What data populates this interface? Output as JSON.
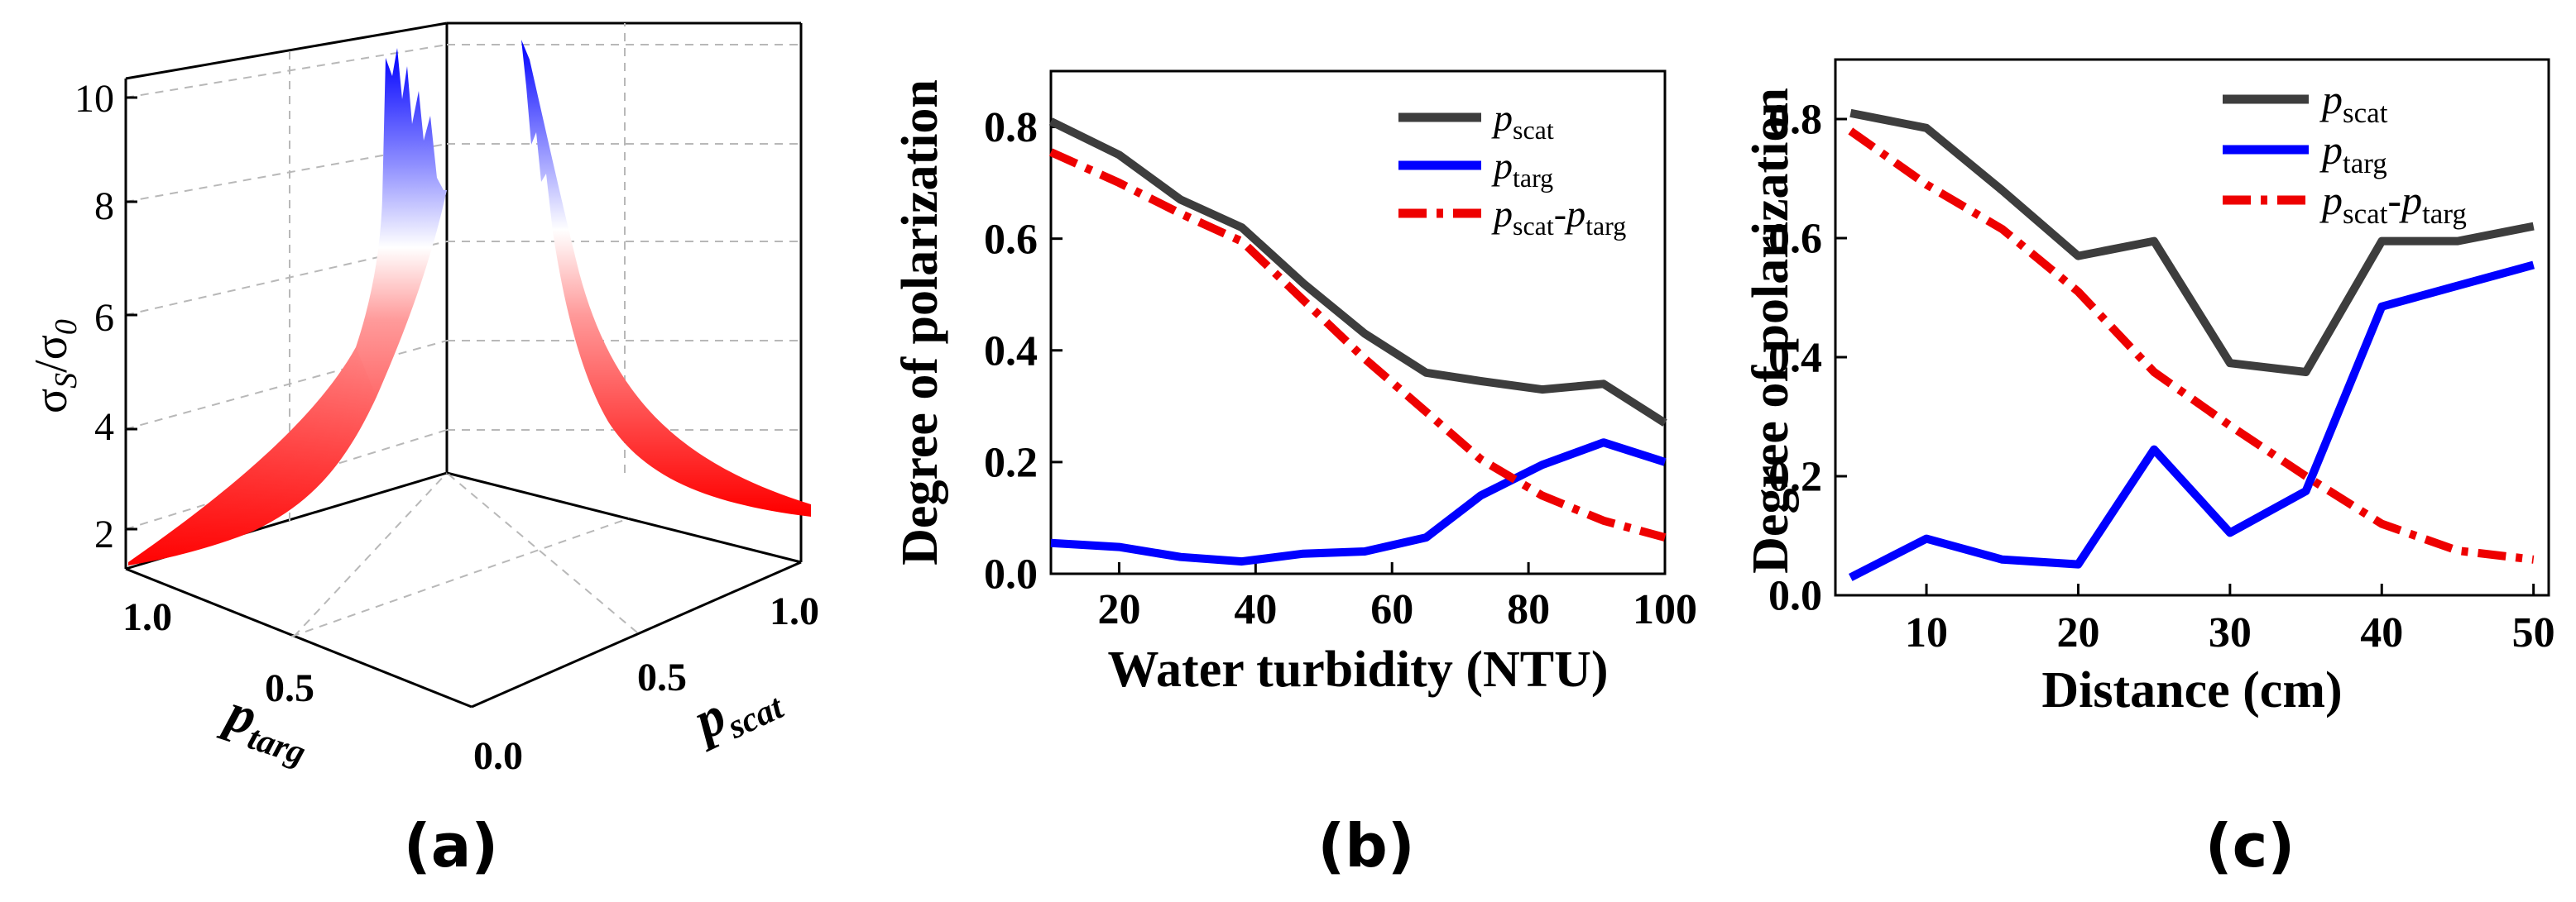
{
  "panel_labels": [
    "(a)",
    "(b)",
    "(c)"
  ],
  "chart_data": [
    {
      "type": "surface",
      "panel": "(a)",
      "zlabel_main": "σ",
      "zlabel_sub_s": "S",
      "zlabel_slash": "/σ",
      "zlabel_sub_0": "0",
      "ztick_labels": [
        "2",
        "4",
        "6",
        "8",
        "10"
      ],
      "zlim": [
        1.4,
        10.7
      ],
      "x_axis": {
        "label": "p",
        "sub": "targ",
        "tick_labels": [
          "1.0",
          "0.5"
        ]
      },
      "y_axis": {
        "label": "p",
        "sub": "scat",
        "tick_labels": [
          "0.5",
          "1.0"
        ]
      },
      "origin_label": "0.0",
      "color_low": "#ff0000",
      "color_mid": "#ffffff",
      "color_high": "#0000ff",
      "grid": true
    },
    {
      "type": "line",
      "panel": "(b)",
      "xlabel": "Water turbidity (NTU)",
      "ylabel": "Degree of polarization",
      "xlim": [
        10,
        100
      ],
      "ylim": [
        0,
        0.9
      ],
      "xticks": [
        20,
        40,
        60,
        80,
        100
      ],
      "yticks": [
        0.0,
        0.2,
        0.4,
        0.6,
        0.8
      ],
      "xtick_labels": [
        "20",
        "40",
        "60",
        "80",
        "100"
      ],
      "ytick_labels": [
        "0.0",
        "0.2",
        "0.4",
        "0.6",
        "0.8"
      ],
      "legend_position": "top-right",
      "series": [
        {
          "name": "p",
          "sub": "scat",
          "color": "#3d3d3d",
          "dash": "solid",
          "x": [
            10,
            20,
            29,
            38,
            47,
            56,
            65,
            73,
            82,
            91,
            100
          ],
          "y": [
            0.81,
            0.75,
            0.67,
            0.62,
            0.52,
            0.43,
            0.36,
            0.345,
            0.33,
            0.34,
            0.27
          ]
        },
        {
          "name": "p",
          "sub": "targ",
          "color": "#0000ff",
          "dash": "solid",
          "x": [
            10,
            20,
            29,
            38,
            47,
            56,
            65,
            73,
            82,
            91,
            100
          ],
          "y": [
            0.055,
            0.048,
            0.03,
            0.022,
            0.036,
            0.04,
            0.065,
            0.14,
            0.195,
            0.235,
            0.2
          ]
        },
        {
          "name": "p",
          "sub": "scat",
          "mid": "-",
          "name2": "p",
          "sub2": "targ",
          "color": "#ee0000",
          "dash": "dashdot",
          "x": [
            10,
            20,
            29,
            38,
            47,
            56,
            65,
            73,
            82,
            91,
            100
          ],
          "y": [
            0.755,
            0.7,
            0.645,
            0.595,
            0.49,
            0.385,
            0.29,
            0.205,
            0.14,
            0.095,
            0.065
          ]
        }
      ]
    },
    {
      "type": "line",
      "panel": "(c)",
      "xlabel": "Distance (cm)",
      "ylabel": "Degree of polarization",
      "xlim": [
        4,
        51
      ],
      "ylim": [
        0,
        0.9
      ],
      "xticks": [
        10,
        20,
        30,
        40,
        50
      ],
      "yticks": [
        0.0,
        0.2,
        0.4,
        0.6,
        0.8
      ],
      "xtick_labels": [
        "10",
        "20",
        "30",
        "40",
        "50"
      ],
      "ytick_labels": [
        "0.0",
        "0.2",
        "0.4",
        "0.6",
        "0.8"
      ],
      "legend_position": "top-right",
      "series": [
        {
          "name": "p",
          "sub": "scat",
          "color": "#3d3d3d",
          "dash": "solid",
          "x": [
            5,
            10,
            15,
            20,
            25,
            30,
            35,
            40,
            45,
            50
          ],
          "y": [
            0.81,
            0.785,
            0.68,
            0.57,
            0.595,
            0.39,
            0.375,
            0.595,
            0.595,
            0.62
          ]
        },
        {
          "name": "p",
          "sub": "targ",
          "color": "#0000ff",
          "dash": "solid",
          "x": [
            5,
            10,
            15,
            20,
            25,
            30,
            35,
            40,
            45,
            50
          ],
          "y": [
            0.03,
            0.095,
            0.06,
            0.052,
            0.245,
            0.105,
            0.175,
            0.485,
            0.52,
            0.555
          ]
        },
        {
          "name": "p",
          "sub": "scat",
          "mid": "-",
          "name2": "p",
          "sub2": "targ",
          "color": "#ee0000",
          "dash": "dashdot",
          "x": [
            5,
            10,
            15,
            20,
            25,
            30,
            35,
            40,
            45,
            50
          ],
          "y": [
            0.78,
            0.69,
            0.615,
            0.51,
            0.375,
            0.285,
            0.2,
            0.12,
            0.075,
            0.06
          ]
        }
      ]
    }
  ]
}
